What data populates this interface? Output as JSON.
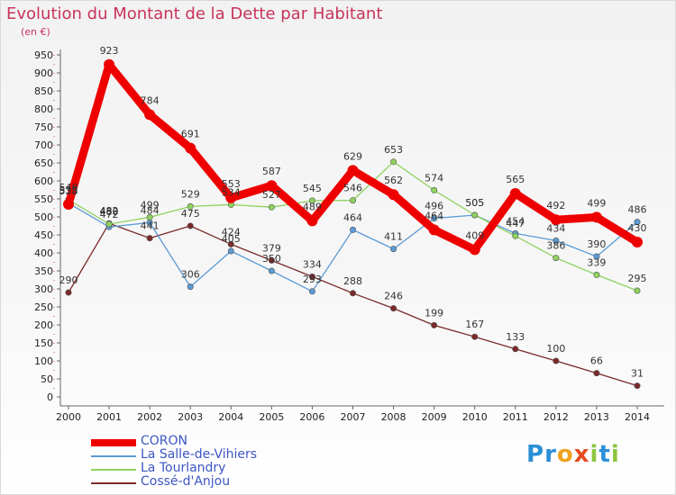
{
  "header": {
    "title": "Evolution du Montant de la Dette par Habitant",
    "unit": "(en €)"
  },
  "logo": {
    "letters": [
      "P",
      "r",
      "o",
      "x",
      "i",
      "t",
      "i"
    ],
    "colors": [
      "#2b8fd6",
      "#2b8fd6",
      "#f0a21e",
      "#e34b1f",
      "#8cc63e",
      "#2b8fd6",
      "#8cc63e"
    ]
  },
  "chart_data": {
    "type": "line",
    "x": [
      "2000",
      "2001",
      "2002",
      "2003",
      "2004",
      "2005",
      "2006",
      "2007",
      "2008",
      "2009",
      "2010",
      "2011",
      "2012",
      "2013",
      "2014"
    ],
    "ylim": [
      0,
      950
    ],
    "yticks": [
      0,
      50,
      100,
      150,
      200,
      250,
      300,
      350,
      400,
      450,
      500,
      550,
      600,
      650,
      700,
      750,
      800,
      850,
      900,
      950
    ],
    "grid": false,
    "legend_position": "bottom",
    "series": [
      {
        "name": "CORON",
        "color": "#ee0000",
        "values": [
          535,
          923,
          784,
          691,
          553,
          587,
          489,
          629,
          562,
          464,
          409,
          565,
          492,
          499,
          430
        ]
      },
      {
        "name": "La Salle-de-Vihiers",
        "color": "#5b9bd5",
        "values": [
          538,
          472,
          484,
          306,
          405,
          350,
          293,
          464,
          411,
          496,
          505,
          454,
          434,
          390,
          486
        ]
      },
      {
        "name": "La Tourlandry",
        "color": "#8fd25f",
        "values": [
          548,
          480,
          499,
          529,
          534,
          527,
          545,
          546,
          653,
          574,
          505,
          447,
          386,
          339,
          295
        ]
      },
      {
        "name": "Cossé-d'Anjou",
        "color": "#7b2a2a",
        "values": [
          290,
          482,
          441,
          475,
          424,
          379,
          334,
          288,
          246,
          199,
          167,
          133,
          100,
          66,
          31
        ]
      }
    ]
  }
}
